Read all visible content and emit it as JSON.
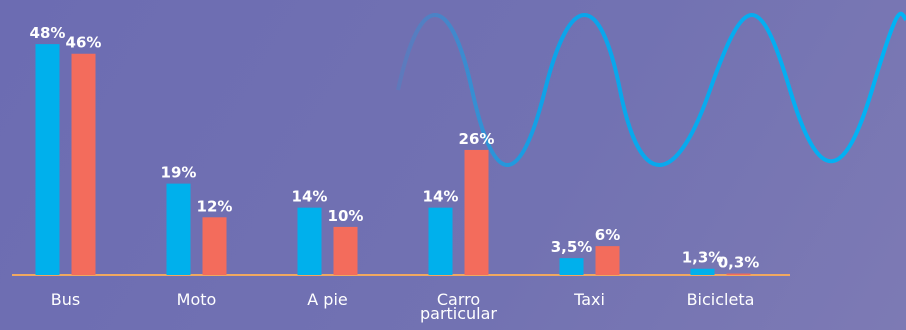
{
  "chart_data": {
    "type": "bar",
    "categories": [
      "Bus",
      "Moto",
      "A pie",
      "Carro particular",
      "Taxi",
      "Bicicleta"
    ],
    "series": [
      {
        "color": "#00b0ec",
        "values": [
          48,
          19,
          14,
          14,
          3.5,
          1.3
        ],
        "value_labels": [
          "48%",
          "19%",
          "14%",
          "14%",
          "3,5%",
          "1,3%"
        ]
      },
      {
        "color": "#f36c5c",
        "values": [
          46,
          12,
          10,
          26,
          6,
          0.3
        ],
        "value_labels": [
          "46%",
          "12%",
          "10%",
          "26%",
          "6%",
          "0,3%"
        ]
      }
    ],
    "ylim": [
      0,
      50
    ]
  }
}
